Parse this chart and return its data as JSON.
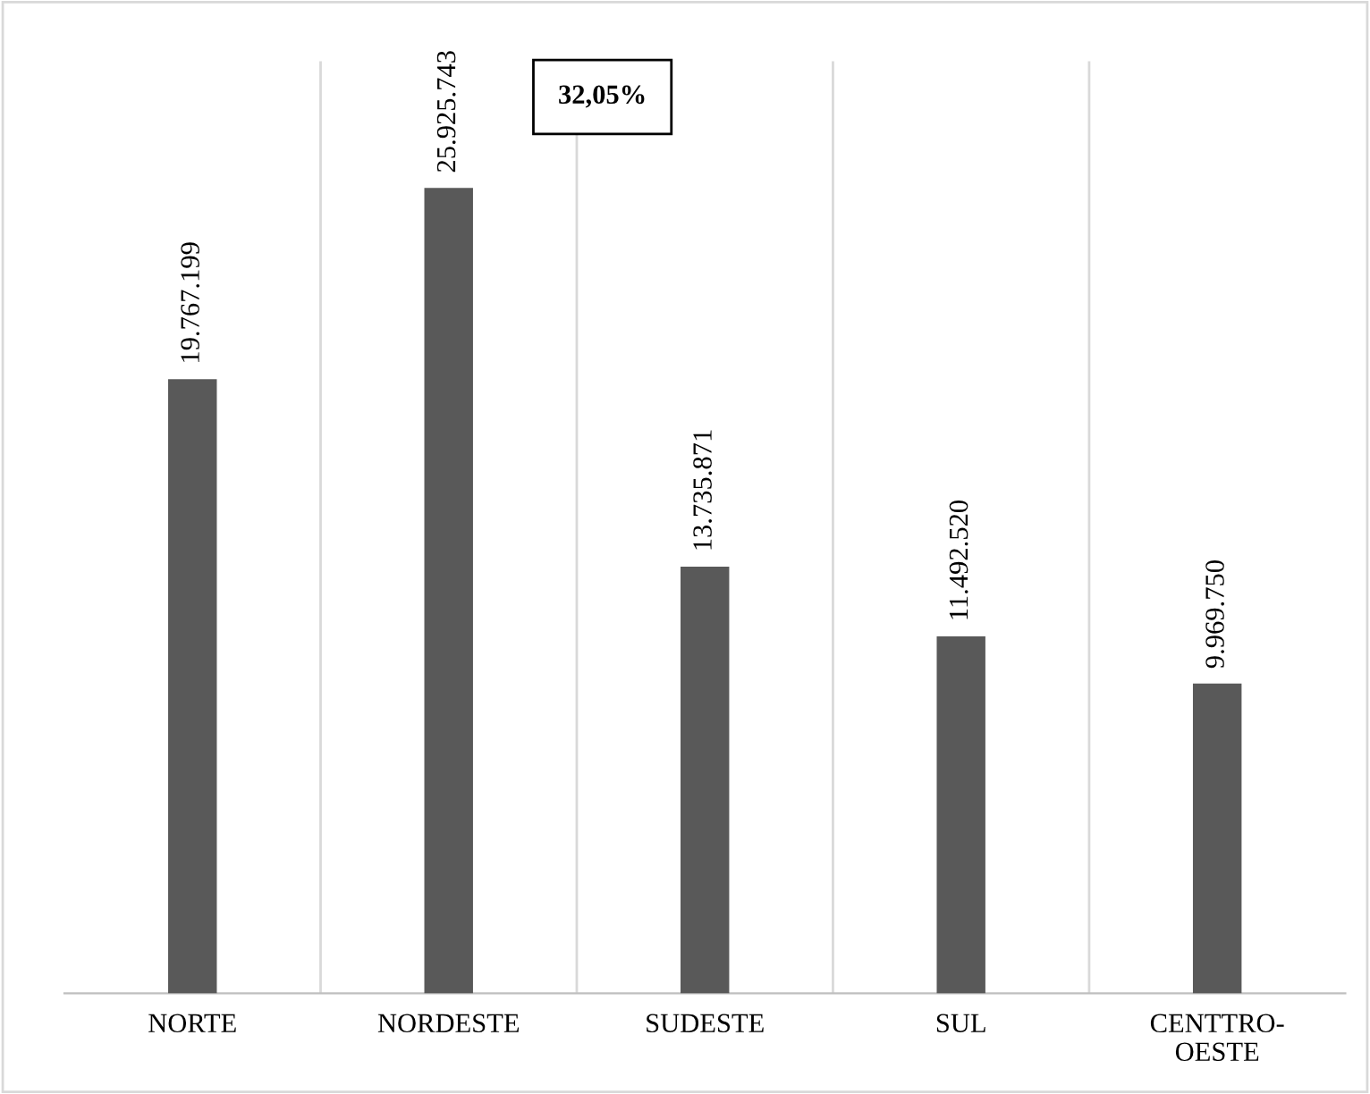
{
  "chart_data": {
    "type": "bar",
    "categories": [
      "NORTE",
      "NORDESTE",
      "SUDESTE",
      "SUL",
      "CENTTRO-\nOESTE"
    ],
    "values": [
      19767199,
      25925743,
      13735871,
      11492520,
      9969750
    ],
    "value_labels": [
      "19.767.199",
      "25.925.743",
      "13.735.871",
      "11.492.520",
      "9.969.750"
    ],
    "color": "#595959",
    "ylim": [
      0,
      30000000
    ],
    "tick_labels": "x",
    "grid": "x",
    "annotations": [
      "32,05%"
    ]
  }
}
